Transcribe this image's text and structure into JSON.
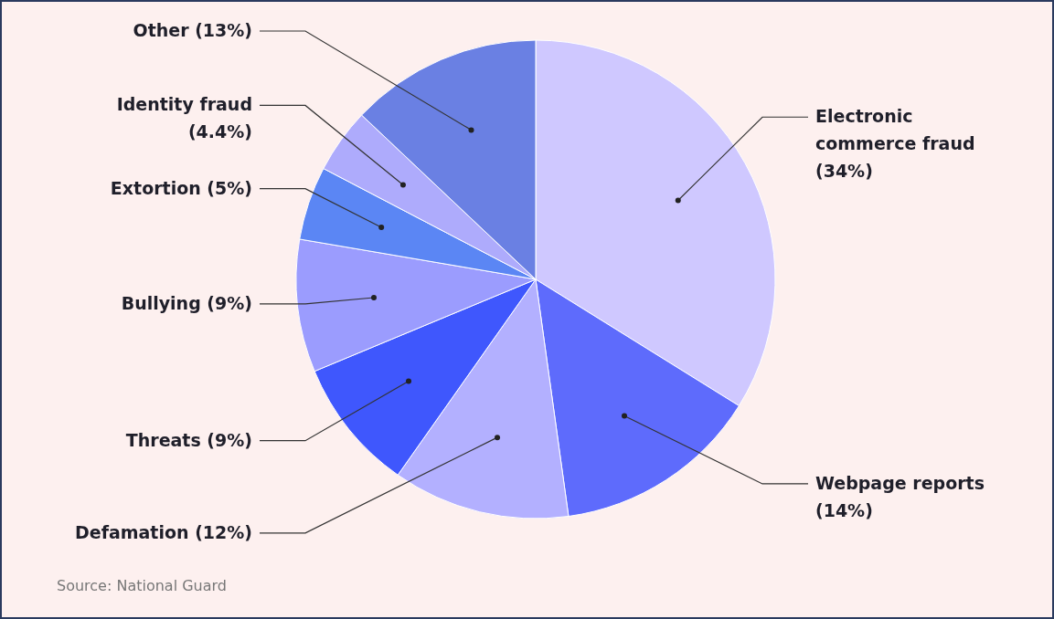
{
  "chart_data": {
    "type": "pie",
    "categories": [
      "Electronic commerce fraud",
      "Webpage reports",
      "Defamation",
      "Threats",
      "Bullying",
      "Extortion",
      "Identity fraud",
      "Other"
    ],
    "values": [
      34,
      14,
      12,
      9,
      9,
      5,
      4.4,
      13
    ],
    "value_labels": [
      "(34%)",
      "(14%)",
      "(12%)",
      "(9%)",
      "(9%)",
      "(5%)",
      "(4.4%)",
      "(13%)"
    ],
    "colors": [
      "#cfc8ff",
      "#5e6bfc",
      "#b3b0ff",
      "#3f57fd",
      "#9b9cfe",
      "#5b86f4",
      "#aeabfc",
      "#6a80e3"
    ],
    "annotations": [
      "Source: National Guard"
    ]
  }
}
